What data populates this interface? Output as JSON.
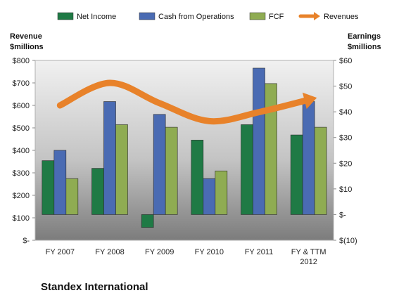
{
  "chart_data": {
    "type": "bar",
    "title": "Standex International",
    "left_axis": {
      "title_lines": [
        "Revenue",
        "$millions"
      ],
      "range": [
        0,
        800
      ],
      "ticks": [
        0,
        100,
        200,
        300,
        400,
        500,
        600,
        700,
        800
      ],
      "tick_labels": [
        "$-",
        "$100",
        "$200",
        "$300",
        "$400",
        "$500",
        "$600",
        "$700",
        "$800"
      ]
    },
    "right_axis": {
      "title_lines": [
        "Earnings",
        "$millions"
      ],
      "range": [
        -10,
        60
      ],
      "ticks": [
        -10,
        0,
        10,
        20,
        30,
        40,
        50,
        60
      ],
      "tick_labels": [
        "$(10)",
        "$-",
        "$10",
        "$20",
        "$30",
        "$40",
        "$50",
        "$60"
      ]
    },
    "categories": [
      [
        "FY 2007"
      ],
      [
        "FY 2008"
      ],
      [
        "FY 2009"
      ],
      [
        "FY 2010"
      ],
      [
        "FY 2011"
      ],
      [
        "FY & TTM",
        "2012"
      ]
    ],
    "series": [
      {
        "name": "Net Income",
        "axis": "right",
        "kind": "bar",
        "color": "#1f7a45",
        "values": [
          21,
          18,
          -5,
          29,
          35,
          31
        ]
      },
      {
        "name": "Cash from Operations",
        "axis": "right",
        "kind": "bar",
        "color": "#4a6bb3",
        "values": [
          25,
          44,
          39,
          14,
          57,
          44
        ]
      },
      {
        "name": "FCF",
        "axis": "right",
        "kind": "bar",
        "color": "#8fac52",
        "values": [
          14,
          35,
          34,
          17,
          51,
          34
        ]
      },
      {
        "name": "Revenues",
        "axis": "left",
        "kind": "line-arrow",
        "color": "#e8822a",
        "values": [
          600,
          700,
          610,
          530,
          570,
          625
        ]
      }
    ],
    "legend_position": "top",
    "grid": false
  }
}
